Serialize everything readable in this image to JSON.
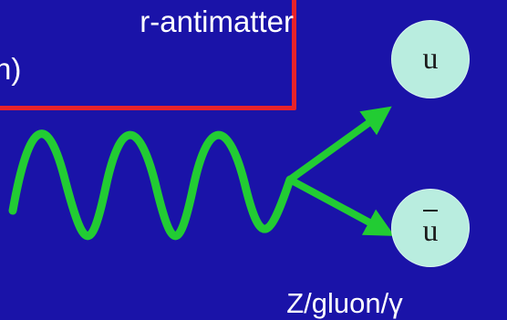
{
  "text_box": {
    "line1": "r-antimatter",
    "line2": "n)"
  },
  "particles": {
    "top": {
      "label": "u"
    },
    "bottom": {
      "label": "u",
      "has_overbar": true
    }
  },
  "mediator_label": "Z/gluon/γ",
  "colors": {
    "background": "#1a13a8",
    "box_border": "#e8222a",
    "text": "#ffffff",
    "wave_and_arrows": "#22cc33",
    "particle_fill": "#b9eddf"
  }
}
